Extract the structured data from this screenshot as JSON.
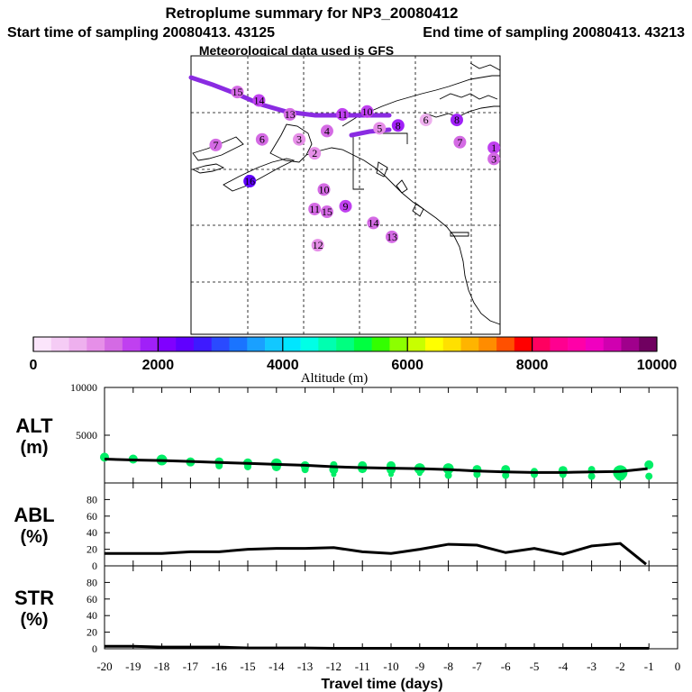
{
  "header": {
    "title": "Retroplume summary for NP3_20080412",
    "start": "Start time of sampling 20080413. 43125",
    "end": "End time of sampling 20080413. 43213",
    "met": "Meteorological data used is GFS"
  },
  "colors": {
    "path": "#8a2be2",
    "alt_series": "#00ee66",
    "line": "#000000",
    "grid": "#000000"
  },
  "colorbar": {
    "stops": [
      "#fbe5fb",
      "#f5ccf5",
      "#eeb0ee",
      "#e68fe8",
      "#d46ae4",
      "#c040f0",
      "#a020f8",
      "#8000ff",
      "#6000ff",
      "#3e1aff",
      "#2a4aff",
      "#1a74ff",
      "#1aa0ff",
      "#12c8ff",
      "#00e6ff",
      "#00ffe6",
      "#00ffb0",
      "#00ff80",
      "#00ff40",
      "#33ff00",
      "#8cff00",
      "#c8ff00",
      "#ffff00",
      "#ffe000",
      "#ffb400",
      "#ff8c00",
      "#ff5000",
      "#ff0000",
      "#ff0060",
      "#ff0090",
      "#ff00a8",
      "#f000c0",
      "#d000b0",
      "#a0008c",
      "#700060"
    ],
    "tick_labels": [
      "0",
      "2000",
      "4000",
      "6000",
      "8000",
      "10000"
    ],
    "tick_values": [
      0,
      2000,
      4000,
      6000,
      8000,
      10000
    ],
    "label": "Altitude (m)"
  },
  "map": {
    "points": [
      {
        "label": "16",
        "lon": -0.06,
        "lat": 0.09,
        "alt": 1500
      },
      {
        "label": "15",
        "lon": 0.15,
        "lat": 0.13,
        "alt": 1400
      },
      {
        "label": "14",
        "lon": 0.22,
        "lat": 0.16,
        "alt": 1500
      },
      {
        "label": "13",
        "lon": 0.32,
        "lat": 0.21,
        "alt": 1400
      },
      {
        "label": "11",
        "lon": 0.49,
        "lat": 0.21,
        "alt": 1600
      },
      {
        "label": "10",
        "lon": 0.57,
        "lat": 0.2,
        "alt": 1500
      },
      {
        "label": "7",
        "lon": 0.08,
        "lat": 0.32,
        "alt": 1200
      },
      {
        "label": "6",
        "lon": 0.23,
        "lat": 0.3,
        "alt": 1300
      },
      {
        "label": "5",
        "lon": 0.61,
        "lat": 0.26,
        "alt": 1100
      },
      {
        "label": "3",
        "lon": 0.35,
        "lat": 0.3,
        "alt": 900
      },
      {
        "label": "2",
        "lon": 0.4,
        "lat": 0.35,
        "alt": 1100
      },
      {
        "label": "4",
        "lon": 0.44,
        "lat": 0.27,
        "alt": 1200
      },
      {
        "label": "8",
        "lon": 0.67,
        "lat": 0.25,
        "alt": 1800
      },
      {
        "label": "16",
        "lon": 0.19,
        "lat": 0.45,
        "alt": 2500
      },
      {
        "label": "10",
        "lon": 0.43,
        "lat": 0.48,
        "alt": 1200
      },
      {
        "label": "9",
        "lon": 0.5,
        "lat": 0.54,
        "alt": 1500
      },
      {
        "label": "11",
        "lon": 0.4,
        "lat": 0.55,
        "alt": 1200
      },
      {
        "label": "15",
        "lon": 0.44,
        "lat": 0.56,
        "alt": 1200
      },
      {
        "label": "14",
        "lon": 0.59,
        "lat": 0.6,
        "alt": 1400
      },
      {
        "label": "13",
        "lon": 0.65,
        "lat": 0.65,
        "alt": 1300
      },
      {
        "label": "12",
        "lon": 0.41,
        "lat": 0.68,
        "alt": 900
      },
      {
        "label": "6",
        "lon": 0.76,
        "lat": 0.23,
        "alt": 800
      },
      {
        "label": "8",
        "lon": 0.86,
        "lat": 0.23,
        "alt": 1800
      },
      {
        "label": "7",
        "lon": 0.87,
        "lat": 0.31,
        "alt": 1300
      },
      {
        "label": "1",
        "lon": 0.98,
        "lat": 0.33,
        "alt": 1500
      },
      {
        "label": "3",
        "lon": 0.98,
        "lat": 0.37,
        "alt": 1400
      }
    ]
  },
  "chart_data": [
    {
      "type": "scatter",
      "panel": "ALT",
      "ylabel_line1": "ALT",
      "ylabel_line2": "(m)",
      "ylim": [
        0,
        10000
      ],
      "y_ticks": [
        "10000",
        "5000"
      ],
      "y_tick_values": [
        10000,
        5000
      ],
      "x_ticks": [
        "-20",
        "-19",
        "-18",
        "-17",
        "-16",
        "-15",
        "-14",
        "-13",
        "-12",
        "-11",
        "-10",
        "-9",
        "-8",
        "-7",
        "-6",
        "-5",
        "-4",
        "-3",
        "-2",
        "-1",
        "0"
      ],
      "x_tick_values": [
        -20,
        -19,
        -18,
        -17,
        -16,
        -15,
        -14,
        -13,
        -12,
        -11,
        -10,
        -9,
        -8,
        -7,
        -6,
        -5,
        -4,
        -3,
        -2,
        -1,
        0
      ],
      "xlim": [
        -20,
        0
      ],
      "xlabel": "Travel time (days)",
      "line": {
        "x": [
          -20,
          -19,
          -18,
          -17,
          -16,
          -15,
          -14,
          -13,
          -12,
          -11,
          -10,
          -9,
          -8,
          -7,
          -6,
          -5,
          -4,
          -3,
          -2,
          -1.05
        ],
        "y": [
          2500,
          2400,
          2350,
          2250,
          2150,
          2050,
          1950,
          1850,
          1700,
          1600,
          1550,
          1500,
          1400,
          1250,
          1150,
          1100,
          1100,
          1150,
          1200,
          1500
        ]
      },
      "points": [
        {
          "x": -20.0,
          "y": 2700,
          "s": 5
        },
        {
          "x": -19.0,
          "y": 2500,
          "s": 5
        },
        {
          "x": -18.0,
          "y": 2400,
          "s": 6
        },
        {
          "x": -17.0,
          "y": 2200,
          "s": 5
        },
        {
          "x": -16.0,
          "y": 2200,
          "s": 5
        },
        {
          "x": -16.0,
          "y": 1800,
          "s": 4
        },
        {
          "x": -15.0,
          "y": 2100,
          "s": 5
        },
        {
          "x": -15.0,
          "y": 1700,
          "s": 4
        },
        {
          "x": -14.0,
          "y": 2000,
          "s": 6
        },
        {
          "x": -14.0,
          "y": 1700,
          "s": 5
        },
        {
          "x": -13.0,
          "y": 1800,
          "s": 5
        },
        {
          "x": -13.0,
          "y": 1400,
          "s": 4
        },
        {
          "x": -12.0,
          "y": 1900,
          "s": 4
        },
        {
          "x": -12.0,
          "y": 1400,
          "s": 5
        },
        {
          "x": -12.0,
          "y": 900,
          "s": 3
        },
        {
          "x": -11.0,
          "y": 1800,
          "s": 5
        },
        {
          "x": -11.0,
          "y": 1500,
          "s": 5
        },
        {
          "x": -10.0,
          "y": 1800,
          "s": 5
        },
        {
          "x": -10.0,
          "y": 1400,
          "s": 5
        },
        {
          "x": -10.0,
          "y": 900,
          "s": 3
        },
        {
          "x": -9.0,
          "y": 1500,
          "s": 6
        },
        {
          "x": -9.0,
          "y": 1000,
          "s": 3
        },
        {
          "x": -8.0,
          "y": 1500,
          "s": 6
        },
        {
          "x": -8.0,
          "y": 800,
          "s": 4
        },
        {
          "x": -7.0,
          "y": 1400,
          "s": 5
        },
        {
          "x": -7.0,
          "y": 900,
          "s": 4
        },
        {
          "x": -6.0,
          "y": 1400,
          "s": 5
        },
        {
          "x": -6.0,
          "y": 800,
          "s": 4
        },
        {
          "x": -5.0,
          "y": 1200,
          "s": 4
        },
        {
          "x": -5.0,
          "y": 900,
          "s": 4
        },
        {
          "x": -4.0,
          "y": 1300,
          "s": 5
        },
        {
          "x": -4.0,
          "y": 900,
          "s": 4
        },
        {
          "x": -3.0,
          "y": 1400,
          "s": 4
        },
        {
          "x": -3.0,
          "y": 700,
          "s": 4
        },
        {
          "x": -2.0,
          "y": 1100,
          "s": 8
        },
        {
          "x": -2.0,
          "y": 800,
          "s": 6
        },
        {
          "x": -1.0,
          "y": 1900,
          "s": 5
        },
        {
          "x": -1.0,
          "y": 700,
          "s": 4
        }
      ]
    },
    {
      "type": "line",
      "panel": "ABL",
      "ylabel_line1": "ABL",
      "ylabel_line2": "(%)",
      "ylim": [
        0,
        100
      ],
      "y_ticks": [
        "80",
        "60",
        "40",
        "20",
        "0"
      ],
      "y_tick_values": [
        80,
        60,
        40,
        20,
        0
      ],
      "xlim": [
        -20,
        0
      ],
      "series": [
        {
          "name": "ABL",
          "x": [
            -20,
            -19,
            -18,
            -17,
            -16,
            -15,
            -14,
            -13,
            -12,
            -11,
            -10,
            -9,
            -8,
            -7,
            -6,
            -5,
            -4,
            -3,
            -2,
            -1.1
          ],
          "y": [
            15,
            15,
            15,
            17,
            17,
            20,
            21,
            21,
            22,
            17,
            15,
            20,
            26,
            25,
            16,
            21,
            14,
            24,
            27,
            2
          ]
        }
      ]
    },
    {
      "type": "line",
      "panel": "STR",
      "ylabel_line1": "STR",
      "ylabel_line2": "(%)",
      "ylim": [
        0,
        100
      ],
      "y_ticks": [
        "80",
        "60",
        "40",
        "20",
        "0"
      ],
      "y_tick_values": [
        80,
        60,
        40,
        20,
        0
      ],
      "xlim": [
        -20,
        0
      ],
      "series": [
        {
          "name": "STR",
          "x": [
            -20,
            -19,
            -18,
            -17,
            -16,
            -15,
            -14,
            -13,
            -12,
            -11,
            -10,
            -9,
            -8,
            -7,
            -6,
            -5,
            -4,
            -3,
            -2,
            -1
          ],
          "y": [
            3,
            3,
            2,
            2,
            2,
            1,
            1,
            1,
            0.5,
            0.5,
            0.5,
            0.5,
            0.5,
            0.5,
            0.5,
            0.5,
            0.5,
            0.5,
            0.5,
            0.5
          ]
        }
      ]
    }
  ]
}
